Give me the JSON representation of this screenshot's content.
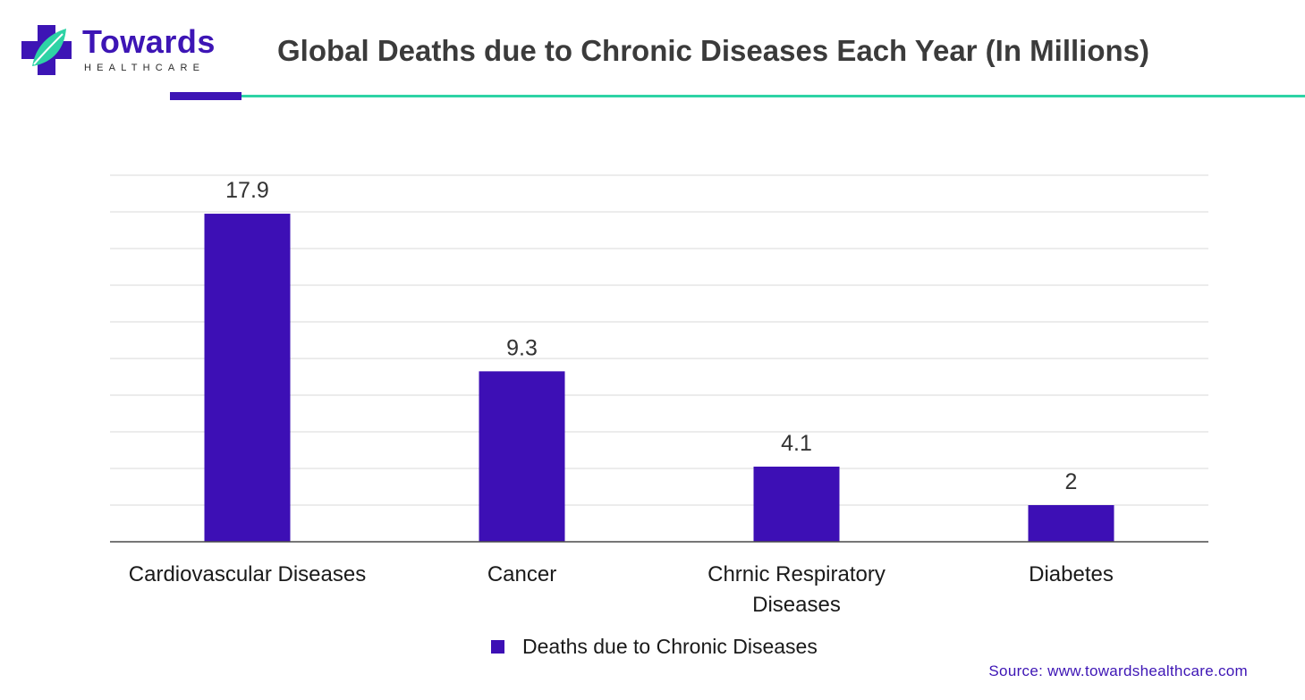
{
  "brand": {
    "name": "Towards",
    "tagline": "HEALTHCARE",
    "color_primary": "#3d15b5",
    "color_accent": "#2ed3a5"
  },
  "header": {
    "title": "Global Deaths due to Chronic Diseases Each Year (In Millions)"
  },
  "chart_data": {
    "type": "bar",
    "title": "Global Deaths due to Chronic Diseases Each Year (In Millions)",
    "categories": [
      [
        "Cardiovascular Diseases"
      ],
      [
        "Cancer"
      ],
      [
        "Chrnic Respiratory",
        "Diseases"
      ],
      [
        "Diabetes"
      ]
    ],
    "series": [
      {
        "name": "Deaths due to Chronic Diseases",
        "values": [
          17.9,
          9.3,
          4.1,
          2
        ],
        "color": "#3d0fb5"
      }
    ],
    "ylim": [
      0,
      20
    ],
    "grid": true,
    "legend": "bottom",
    "xlabel": "",
    "ylabel": ""
  },
  "legend": {
    "label": "Deaths due to Chronic Diseases"
  },
  "footer": {
    "source": "Source: www.towardshealthcare.com"
  }
}
